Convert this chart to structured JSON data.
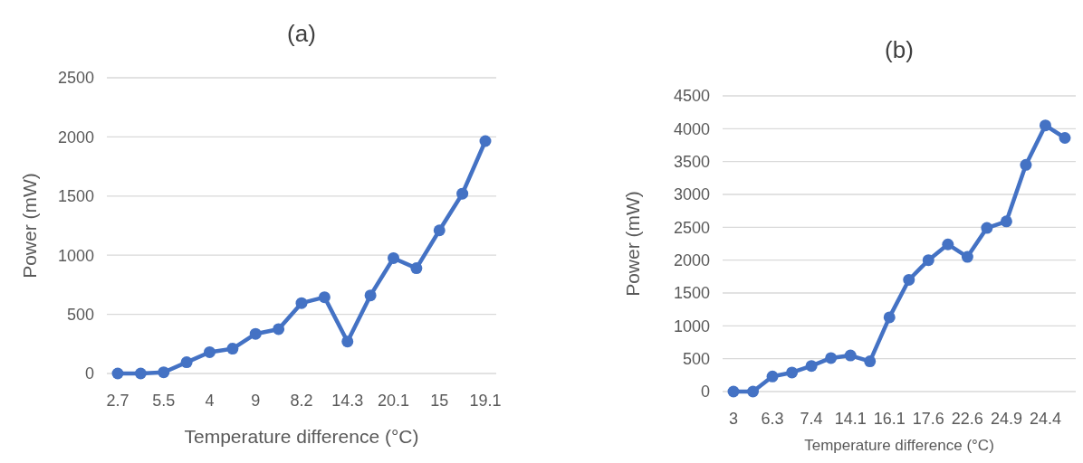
{
  "chart_data": [
    {
      "type": "line",
      "title": "(a)",
      "xlabel": "Temperature difference (°C)",
      "ylabel": "Power (mW)",
      "categories": [
        "2.7",
        null,
        "5.5",
        null,
        "4",
        null,
        "9",
        null,
        "8.2",
        null,
        "14.3",
        null,
        "20.1",
        null,
        "15",
        null,
        "19.1"
      ],
      "series": [
        {
          "color": "#4472c4",
          "values": [
            0,
            0,
            10,
            95,
            180,
            210,
            335,
            375,
            595,
            645,
            270,
            660,
            975,
            890,
            1210,
            1520,
            1965
          ]
        }
      ],
      "ylim": [
        0,
        2500
      ],
      "yticks": [
        0,
        500,
        1000,
        1500,
        2000,
        2500
      ],
      "grid": "y",
      "marker": "circle"
    },
    {
      "type": "line",
      "title": "(b)",
      "xlabel": "Temperature difference (°C)",
      "ylabel": "Power (mW)",
      "categories": [
        "3",
        null,
        "6.3",
        null,
        "7.4",
        null,
        "14.1",
        null,
        "16.1",
        null,
        "17.6",
        null,
        "22.6",
        null,
        "24.9",
        null,
        "24.4",
        null
      ],
      "series": [
        {
          "color": "#4472c4",
          "values": [
            0,
            0,
            230,
            290,
            390,
            510,
            550,
            460,
            1130,
            1700,
            2000,
            2240,
            2050,
            2490,
            2590,
            3450,
            4050,
            3860
          ]
        }
      ],
      "ylim": [
        0,
        4500
      ],
      "yticks": [
        0,
        500,
        1000,
        1500,
        2000,
        2500,
        3000,
        3500,
        4000,
        4500
      ],
      "grid": "y",
      "marker": "circle"
    }
  ]
}
